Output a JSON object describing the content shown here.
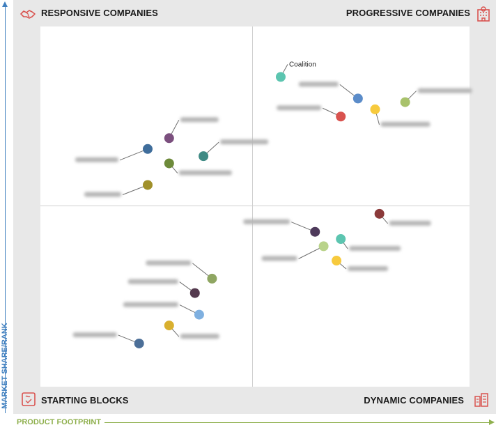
{
  "chart_data": {
    "type": "scatter",
    "title": "",
    "xlabel": "PRODUCT FOOTPRINT",
    "ylabel": "MARKET SHARE/RANK",
    "xlim": [
      0,
      100
    ],
    "ylim": [
      0,
      100
    ],
    "grid": false,
    "quadrants": {
      "top_left": "RESPONSIVE COMPANIES",
      "top_right": "PROGRESSIVE COMPANIES",
      "bottom_left": "STARTING BLOCKS",
      "bottom_right": "DYNAMIC COMPANIES"
    },
    "points": [
      {
        "label": "Coalition",
        "x": 56,
        "y": 86,
        "color": "#5cc5b0",
        "label_visible": true
      },
      {
        "label": "",
        "x": 74,
        "y": 80,
        "color": "#5b8cc9",
        "label_visible": false
      },
      {
        "label": "",
        "x": 70,
        "y": 75,
        "color": "#d9534f",
        "label_visible": false
      },
      {
        "label": "",
        "x": 78,
        "y": 77,
        "color": "#f7ca3d",
        "label_visible": false
      },
      {
        "label": "",
        "x": 85,
        "y": 79,
        "color": "#a8c26b",
        "label_visible": false
      },
      {
        "label": "",
        "x": 30,
        "y": 69,
        "color": "#7b4f7e",
        "label_visible": false
      },
      {
        "label": "",
        "x": 25,
        "y": 66,
        "color": "#3f6d9b",
        "label_visible": false
      },
      {
        "label": "",
        "x": 38,
        "y": 64,
        "color": "#3f8a84",
        "label_visible": false
      },
      {
        "label": "",
        "x": 30,
        "y": 62,
        "color": "#6d8a3a",
        "label_visible": false
      },
      {
        "label": "",
        "x": 25,
        "y": 56,
        "color": "#a0902a",
        "label_visible": false
      },
      {
        "label": "",
        "x": 79,
        "y": 48,
        "color": "#8b3a3a",
        "label_visible": false
      },
      {
        "label": "",
        "x": 64,
        "y": 43,
        "color": "#4e3a5b",
        "label_visible": false
      },
      {
        "label": "",
        "x": 70,
        "y": 41,
        "color": "#5cc5b0",
        "label_visible": false
      },
      {
        "label": "",
        "x": 66,
        "y": 39,
        "color": "#b9d38a",
        "label_visible": false
      },
      {
        "label": "",
        "x": 69,
        "y": 35,
        "color": "#f7ca3d",
        "label_visible": false
      },
      {
        "label": "",
        "x": 40,
        "y": 30,
        "color": "#8fa662",
        "label_visible": false
      },
      {
        "label": "",
        "x": 36,
        "y": 26,
        "color": "#54394e",
        "label_visible": false
      },
      {
        "label": "",
        "x": 37,
        "y": 20,
        "color": "#7fb0e0",
        "label_visible": false
      },
      {
        "label": "",
        "x": 30,
        "y": 17,
        "color": "#d9b02f",
        "label_visible": false
      },
      {
        "label": "",
        "x": 23,
        "y": 12,
        "color": "#4c6f98",
        "label_visible": false
      }
    ]
  },
  "icons": {
    "top_left": "handshake-icon",
    "top_right": "building-icon",
    "bottom_left": "puzzle-icon",
    "bottom_right": "city-icon"
  },
  "colors": {
    "y_axis": "#3f7fbf",
    "x_axis": "#8fb04e",
    "icon": "#d9534f"
  }
}
